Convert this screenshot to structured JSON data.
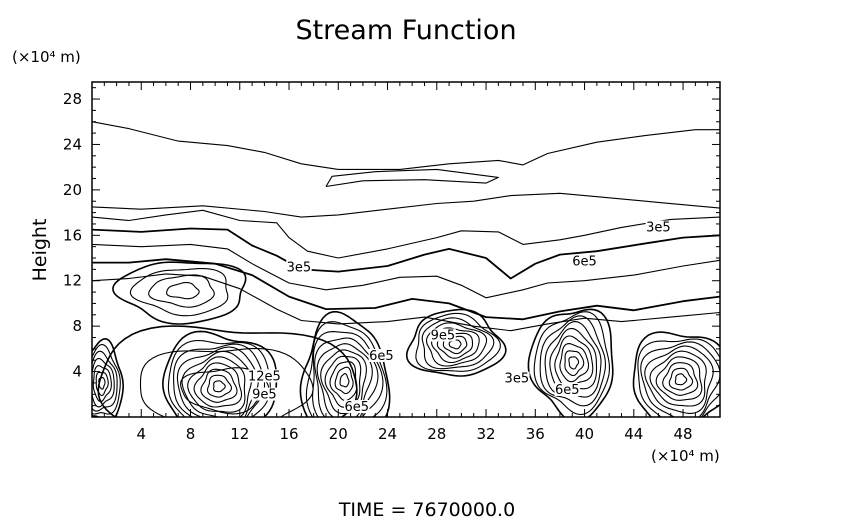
{
  "chart_data": {
    "type": "contour",
    "title": "Stream Function",
    "ylabel": "Height",
    "y_unit": "(×10⁴ m)",
    "x_unit": "(×10⁴ m)",
    "footer": "TIME  =  7670000.0",
    "xlim": [
      0,
      51
    ],
    "ylim": [
      0,
      29.5
    ],
    "xticks": [
      4,
      8,
      12,
      16,
      20,
      24,
      28,
      32,
      36,
      40,
      44,
      48
    ],
    "yticks": [
      4,
      8,
      12,
      16,
      20,
      24,
      28
    ],
    "minor_x_step": 1,
    "minor_y_step": 1,
    "grid": false,
    "line_color": "#000000",
    "contour_labels": [
      {
        "text": "3e5",
        "x": 46,
        "y": 16.5
      },
      {
        "text": "6e5",
        "x": 40,
        "y": 13.5
      },
      {
        "text": "3e5",
        "x": 16.8,
        "y": 13.0
      },
      {
        "text": "9e5",
        "x": 28.5,
        "y": 7.0
      },
      {
        "text": "6e5",
        "x": 23.5,
        "y": 5.2
      },
      {
        "text": "3e5",
        "x": 34.5,
        "y": 3.2
      },
      {
        "text": "6e5",
        "x": 38.6,
        "y": 2.2
      },
      {
        "text": "6e5",
        "x": 21.5,
        "y": 0.7
      },
      {
        "text": "12e5",
        "x": 14,
        "y": 3.4
      },
      {
        "text": "9e5",
        "x": 14,
        "y": 1.8
      }
    ],
    "cells": [
      {
        "cx": 0.8,
        "cy": 3.0,
        "rx": 1.7,
        "ry": 3.5,
        "n": 7
      },
      {
        "cx": 10.3,
        "cy": 2.7,
        "rx": 4.6,
        "ry": 4.8,
        "n": 10
      },
      {
        "cx": 20.5,
        "cy": 3.2,
        "rx": 3.5,
        "ry": 5.6,
        "n": 10
      },
      {
        "cx": 29.5,
        "cy": 6.4,
        "rx": 3.8,
        "ry": 2.9,
        "n": 8
      },
      {
        "cx": 39.1,
        "cy": 4.8,
        "rx": 3.4,
        "ry": 4.8,
        "n": 9
      },
      {
        "cx": 47.8,
        "cy": 3.3,
        "rx": 4.0,
        "ry": 4.3,
        "n": 9
      },
      {
        "cx": 7.4,
        "cy": 11.1,
        "rx": 5.2,
        "ry": 2.7,
        "n": 4
      },
      {
        "cx": 10.8,
        "cy": 2.4,
        "rx": 10.5,
        "ry": 5.8,
        "n": 3
      }
    ],
    "upper_lines": [
      [
        [
          0,
          26.0
        ],
        [
          3,
          25.4
        ],
        [
          7,
          24.3
        ],
        [
          11,
          23.9
        ],
        [
          14,
          23.3
        ],
        [
          17,
          22.3
        ],
        [
          20,
          21.8
        ],
        [
          25,
          21.8
        ],
        [
          29,
          22.3
        ],
        [
          33,
          22.6
        ],
        [
          35,
          22.2
        ],
        [
          37,
          23.2
        ],
        [
          41,
          24.2
        ],
        [
          45,
          24.8
        ],
        [
          49,
          25.3
        ],
        [
          51,
          25.3
        ]
      ],
      [
        [
          0,
          18.5
        ],
        [
          4,
          18.3
        ],
        [
          9,
          18.6
        ],
        [
          14,
          18.1
        ],
        [
          17,
          17.6
        ],
        [
          20,
          17.8
        ],
        [
          24,
          18.3
        ],
        [
          28,
          18.8
        ],
        [
          31,
          19.0
        ],
        [
          34,
          19.5
        ],
        [
          38,
          19.7
        ],
        [
          42,
          19.3
        ],
        [
          46,
          18.9
        ],
        [
          51,
          18.4
        ]
      ],
      [
        [
          0,
          17.6
        ],
        [
          3,
          17.3
        ],
        [
          6,
          17.8
        ],
        [
          9,
          18.2
        ],
        [
          12,
          17.3
        ],
        [
          15,
          17.1
        ],
        [
          16,
          15.8
        ],
        [
          17.5,
          14.6
        ],
        [
          20,
          14.0
        ],
        [
          24,
          14.8
        ],
        [
          28,
          15.8
        ],
        [
          30,
          16.4
        ],
        [
          33,
          16.3
        ],
        [
          35,
          15.2
        ],
        [
          38,
          15.6
        ],
        [
          40,
          16.0
        ],
        [
          43,
          16.7
        ],
        [
          47,
          17.4
        ],
        [
          51,
          17.6
        ]
      ],
      [
        [
          0,
          16.5
        ],
        [
          4,
          16.3
        ],
        [
          8,
          16.6
        ],
        [
          11,
          16.5
        ],
        [
          13,
          15.1
        ],
        [
          15,
          14.2
        ],
        [
          17,
          13.0
        ],
        [
          20,
          12.8
        ],
        [
          24,
          13.3
        ],
        [
          27,
          14.3
        ],
        [
          29,
          14.8
        ],
        [
          32,
          14.0
        ],
        [
          34,
          12.2
        ],
        [
          36,
          13.5
        ],
        [
          38,
          14.3
        ],
        [
          41,
          14.6
        ],
        [
          45,
          15.3
        ],
        [
          48,
          15.8
        ],
        [
          51,
          16.0
        ]
      ],
      [
        [
          0,
          15.2
        ],
        [
          4,
          15.0
        ],
        [
          8,
          15.2
        ],
        [
          11,
          14.8
        ],
        [
          13,
          13.5
        ],
        [
          16,
          11.8
        ],
        [
          19,
          11.2
        ],
        [
          22,
          11.6
        ],
        [
          25,
          12.3
        ],
        [
          28,
          12.4
        ],
        [
          30,
          11.6
        ],
        [
          32,
          10.5
        ],
        [
          35,
          11.2
        ],
        [
          37,
          11.8
        ],
        [
          40,
          12.0
        ],
        [
          44,
          12.5
        ],
        [
          48,
          13.3
        ],
        [
          51,
          13.8
        ]
      ],
      [
        [
          0,
          13.6
        ],
        [
          3,
          13.6
        ],
        [
          6,
          13.9
        ],
        [
          10,
          13.5
        ],
        [
          13,
          12.5
        ],
        [
          16,
          10.6
        ],
        [
          19,
          9.5
        ],
        [
          23,
          9.6
        ],
        [
          26,
          10.4
        ],
        [
          29,
          10.0
        ],
        [
          32,
          8.8
        ],
        [
          35,
          8.6
        ],
        [
          38,
          9.3
        ],
        [
          41,
          9.8
        ],
        [
          44,
          9.4
        ],
        [
          48,
          10.2
        ],
        [
          51,
          10.6
        ]
      ],
      [
        [
          0,
          12.0
        ],
        [
          3,
          12.2
        ],
        [
          6,
          12.6
        ],
        [
          9,
          12.4
        ],
        [
          12,
          11.3
        ],
        [
          15,
          9.5
        ],
        [
          17,
          8.5
        ],
        [
          20,
          8.2
        ],
        [
          24,
          8.4
        ],
        [
          27,
          8.8
        ],
        [
          31,
          8.0
        ],
        [
          34,
          7.6
        ],
        [
          37,
          8.2
        ],
        [
          40,
          8.7
        ],
        [
          43,
          8.4
        ],
        [
          47,
          8.8
        ],
        [
          51,
          9.2
        ]
      ],
      [
        [
          19,
          20.3
        ],
        [
          22,
          20.8
        ],
        [
          27,
          20.9
        ],
        [
          32,
          20.6
        ],
        [
          33,
          21.1
        ],
        [
          28,
          21.8
        ],
        [
          23,
          21.6
        ],
        [
          19.5,
          21.2
        ],
        [
          19,
          20.3
        ]
      ]
    ]
  }
}
